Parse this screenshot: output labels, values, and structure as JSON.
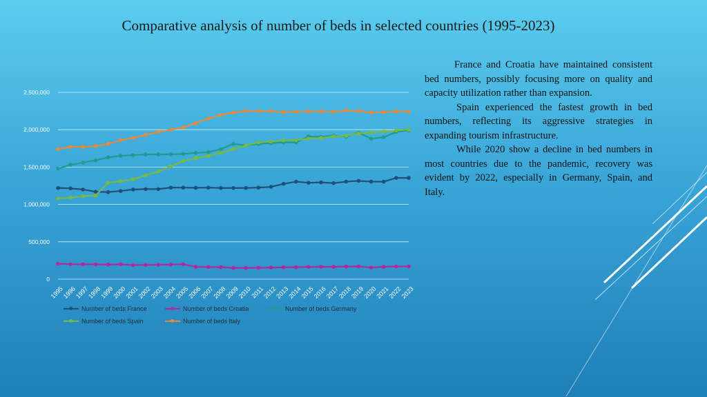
{
  "slide": {
    "title": "Comparative analysis of number of beds in selected countries (1995-2023)"
  },
  "notes": {
    "p1": "France and Croatia have maintained consistent bed numbers, possibly focusing more on quality and capacity utilization rather than expansion.",
    "p2": "Spain experienced the fastest growth in bed numbers, reflecting its aggressive strategies in expanding tourism infrastructure.",
    "p3": "While 2020 show a decline in bed numbers in most countries due to the pandemic, recovery was evident by 2022, especially in Germany, Spain, and Italy."
  },
  "chart_data": {
    "type": "line",
    "title": "",
    "xlabel": "",
    "ylabel": "",
    "ylim": [
      0,
      2500000
    ],
    "y_ticks": [
      "0",
      "500,000",
      "1,000,000",
      "1,500,000",
      "2,000,000",
      "2,500,000"
    ],
    "grid": true,
    "legend_position": "bottom",
    "categories": [
      "1995",
      "1996",
      "1997",
      "1998",
      "1999",
      "2000",
      "2001",
      "2002",
      "2003",
      "2004",
      "2005",
      "2006",
      "2007",
      "2008",
      "2009",
      "2010",
      "2011",
      "2012",
      "2013",
      "2014",
      "2015",
      "2016",
      "2017",
      "2018",
      "2019",
      "2020",
      "2021",
      "2022",
      "2023"
    ],
    "series": [
      {
        "name": "Number of beds France",
        "color": "#1f4e79",
        "values": [
          1220000,
          1215000,
          1200000,
          1170000,
          1165000,
          1180000,
          1200000,
          1205000,
          1205000,
          1225000,
          1225000,
          1222000,
          1225000,
          1220000,
          1220000,
          1220000,
          1225000,
          1235000,
          1275000,
          1305000,
          1290000,
          1295000,
          1285000,
          1305000,
          1315000,
          1305000,
          1305000,
          1355000,
          1355000
        ]
      },
      {
        "name": "Number of beds Croatia",
        "color": "#b3279e",
        "values": [
          205000,
          200000,
          198000,
          198000,
          195000,
          198000,
          188000,
          190000,
          192000,
          195000,
          200000,
          165000,
          162000,
          160000,
          150000,
          150000,
          152000,
          155000,
          158000,
          160000,
          163000,
          165000,
          165000,
          168000,
          170000,
          155000,
          165000,
          170000,
          170000
        ]
      },
      {
        "name": "Number of beds Germany",
        "color": "#1f9c8c",
        "values": [
          1480000,
          1530000,
          1560000,
          1590000,
          1630000,
          1650000,
          1660000,
          1670000,
          1670000,
          1670000,
          1675000,
          1690000,
          1700000,
          1740000,
          1810000,
          1790000,
          1810000,
          1820000,
          1830000,
          1830000,
          1910000,
          1905000,
          1920000,
          1910000,
          1960000,
          1880000,
          1900000,
          1970000,
          1990000
        ]
      },
      {
        "name": "Number of beds Spain",
        "color": "#78b943",
        "values": [
          1080000,
          1090000,
          1110000,
          1120000,
          1290000,
          1310000,
          1335000,
          1390000,
          1440000,
          1510000,
          1580000,
          1620000,
          1650000,
          1690000,
          1740000,
          1790000,
          1830000,
          1840000,
          1860000,
          1860000,
          1880000,
          1890000,
          1910000,
          1920000,
          1950000,
          1960000,
          1975000,
          1990000,
          2000000
        ]
      },
      {
        "name": "Number of beds Italy",
        "color": "#e8883a",
        "values": [
          1740000,
          1770000,
          1770000,
          1780000,
          1810000,
          1860000,
          1890000,
          1930000,
          1970000,
          2000000,
          2030000,
          2090000,
          2150000,
          2200000,
          2230000,
          2250000,
          2250000,
          2250000,
          2235000,
          2240000,
          2245000,
          2245000,
          2240000,
          2255000,
          2250000,
          2230000,
          2235000,
          2245000,
          2245000
        ]
      }
    ]
  }
}
